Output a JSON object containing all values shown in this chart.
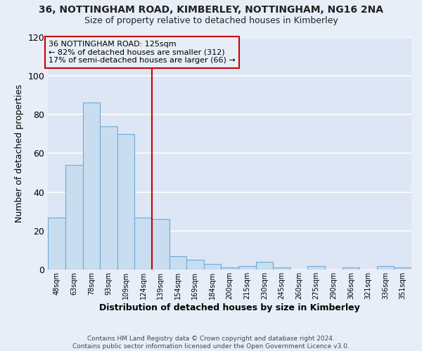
{
  "title": "36, NOTTINGHAM ROAD, KIMBERLEY, NOTTINGHAM, NG16 2NA",
  "subtitle": "Size of property relative to detached houses in Kimberley",
  "xlabel": "Distribution of detached houses by size in Kimberley",
  "ylabel": "Number of detached properties",
  "bar_color": "#c9ddf0",
  "bar_edge_color": "#6baad8",
  "categories": [
    "48sqm",
    "63sqm",
    "78sqm",
    "93sqm",
    "109sqm",
    "124sqm",
    "139sqm",
    "154sqm",
    "169sqm",
    "184sqm",
    "200sqm",
    "215sqm",
    "230sqm",
    "245sqm",
    "260sqm",
    "275sqm",
    "290sqm",
    "306sqm",
    "321sqm",
    "336sqm",
    "351sqm"
  ],
  "values": [
    27,
    54,
    86,
    74,
    70,
    27,
    26,
    7,
    5,
    3,
    1,
    2,
    4,
    1,
    0,
    2,
    0,
    1,
    0,
    2,
    1
  ],
  "ylim": [
    0,
    120
  ],
  "yticks": [
    0,
    20,
    40,
    60,
    80,
    100,
    120
  ],
  "property_label": "36 NOTTINGHAM ROAD: 125sqm",
  "annotation_line1": "← 82% of detached houses are smaller (312)",
  "annotation_line2": "17% of semi-detached houses are larger (66) →",
  "vline_color": "#cc0000",
  "footer_line1": "Contains HM Land Registry data © Crown copyright and database right 2024.",
  "footer_line2": "Contains public sector information licensed under the Open Government Licence v3.0.",
  "background_color": "#e8eef8",
  "plot_bg_color": "#dde6f4",
  "grid_color": "#ffffff",
  "bin_width": 15,
  "first_edge": 33
}
